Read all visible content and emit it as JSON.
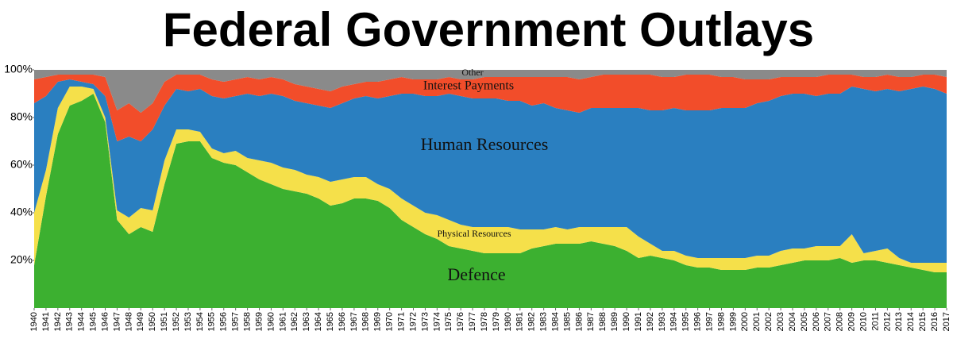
{
  "chart_data": {
    "type": "stacked_area",
    "title": "Federal Government Outlays",
    "x": [
      1940,
      1941,
      1942,
      1943,
      1944,
      1945,
      1946,
      1947,
      1948,
      1949,
      1950,
      1951,
      1952,
      1953,
      1954,
      1955,
      1956,
      1957,
      1958,
      1959,
      1960,
      1961,
      1962,
      1963,
      1964,
      1965,
      1966,
      1967,
      1968,
      1969,
      1970,
      1971,
      1972,
      1973,
      1974,
      1975,
      1976,
      1977,
      1978,
      1979,
      1980,
      1981,
      1982,
      1983,
      1984,
      1985,
      1986,
      1987,
      1988,
      1989,
      1990,
      1991,
      1992,
      1993,
      1994,
      1995,
      1996,
      1997,
      1998,
      1999,
      2000,
      2001,
      2002,
      2003,
      2004,
      2005,
      2006,
      2007,
      2008,
      2009,
      2010,
      2011,
      2012,
      2013,
      2014,
      2015,
      2016,
      2017
    ],
    "xlim": [
      1940,
      2017
    ],
    "xticks": [
      1940,
      1941,
      1942,
      1943,
      1944,
      1945,
      1946,
      1947,
      1948,
      1949,
      1950,
      1951,
      1952,
      1953,
      1954,
      1955,
      1956,
      1957,
      1958,
      1959,
      1960,
      1961,
      1962,
      1963,
      1964,
      1965,
      1966,
      1967,
      1968,
      1969,
      1970,
      1971,
      1972,
      1973,
      1974,
      1975,
      1976,
      1977,
      1978,
      1979,
      1980,
      1981,
      1982,
      1983,
      1984,
      1985,
      1986,
      1987,
      1988,
      1989,
      1990,
      1991,
      1992,
      1993,
      1994,
      1995,
      1996,
      1997,
      1998,
      1999,
      2000,
      2001,
      2002,
      2003,
      2004,
      2005,
      2006,
      2007,
      2008,
      2009,
      2010,
      2011,
      2012,
      2013,
      2014,
      2015,
      2016,
      2017
    ],
    "ylim": [
      0,
      100
    ],
    "yticks": [
      {
        "value": 20,
        "label": "20%"
      },
      {
        "value": 40,
        "label": "40%"
      },
      {
        "value": 60,
        "label": "60%"
      },
      {
        "value": 80,
        "label": "80%"
      },
      {
        "value": 100,
        "label": "100%"
      }
    ],
    "grid": false,
    "series": [
      {
        "name": "Defence",
        "color": "#3cb030",
        "values": [
          18,
          47,
          73,
          85,
          87,
          90,
          78,
          37,
          31,
          34,
          32,
          52,
          69,
          70,
          70,
          63,
          61,
          60,
          57,
          54,
          52,
          50,
          49,
          48,
          46,
          43,
          44,
          46,
          46,
          45,
          42,
          37,
          34,
          31,
          29,
          26,
          25,
          24,
          23,
          23,
          23,
          23,
          25,
          26,
          27,
          27,
          27,
          28,
          27,
          26,
          24,
          21,
          22,
          21,
          20,
          18,
          17,
          17,
          16,
          16,
          16,
          17,
          17,
          18,
          19,
          20,
          20,
          20,
          21,
          19,
          20,
          20,
          19,
          18,
          17,
          16,
          15,
          15
        ]
      },
      {
        "name": "Physical Resources",
        "color": "#f5e04a",
        "values": [
          22,
          11,
          11,
          8,
          6,
          2,
          2,
          4,
          7,
          8,
          9,
          10,
          6,
          5,
          4,
          4,
          4,
          6,
          6,
          8,
          9,
          9,
          9,
          8,
          9,
          10,
          10,
          9,
          9,
          7,
          8,
          9,
          9,
          9,
          10,
          11,
          10,
          10,
          11,
          11,
          11,
          10,
          8,
          7,
          7,
          6,
          7,
          6,
          7,
          8,
          10,
          9,
          5,
          3,
          4,
          4,
          4,
          4,
          5,
          5,
          5,
          5,
          5,
          6,
          6,
          5,
          6,
          6,
          5,
          12,
          3,
          4,
          6,
          3,
          2,
          3,
          4,
          4
        ]
      },
      {
        "name": "Human Resources",
        "color": "#2a7fc0",
        "values": [
          46,
          31,
          11,
          3,
          2,
          2,
          9,
          29,
          34,
          28,
          34,
          23,
          17,
          16,
          18,
          22,
          23,
          23,
          27,
          27,
          29,
          30,
          29,
          30,
          30,
          31,
          32,
          33,
          34,
          36,
          39,
          44,
          47,
          49,
          50,
          53,
          54,
          54,
          54,
          54,
          53,
          54,
          52,
          53,
          50,
          50,
          48,
          50,
          50,
          50,
          50,
          54,
          56,
          59,
          60,
          61,
          62,
          62,
          63,
          63,
          63,
          64,
          65,
          65,
          65,
          65,
          63,
          64,
          64,
          62,
          69,
          67,
          67,
          70,
          73,
          74,
          73,
          71
        ]
      },
      {
        "name": "Interest Payments",
        "color": "#f24d2a",
        "values": [
          10,
          8,
          3,
          2,
          3,
          4,
          8,
          13,
          14,
          12,
          11,
          10,
          6,
          7,
          6,
          7,
          7,
          7,
          7,
          7,
          7,
          7,
          7,
          7,
          7,
          7,
          7,
          6,
          6,
          7,
          7,
          7,
          6,
          7,
          7,
          7,
          7,
          8,
          9,
          9,
          10,
          10,
          12,
          11,
          13,
          14,
          14,
          13,
          14,
          14,
          14,
          14,
          15,
          14,
          13,
          15,
          15,
          15,
          13,
          13,
          12,
          10,
          9,
          8,
          7,
          7,
          8,
          8,
          8,
          5,
          5,
          6,
          6,
          6,
          5,
          5,
          6,
          7
        ]
      },
      {
        "name": "Other",
        "color": "#8a8a8a",
        "values": [
          4,
          3,
          2,
          2,
          2,
          2,
          3,
          17,
          14,
          18,
          14,
          5,
          2,
          2,
          2,
          4,
          5,
          4,
          3,
          4,
          3,
          4,
          6,
          7,
          8,
          9,
          7,
          6,
          5,
          5,
          4,
          3,
          4,
          4,
          4,
          3,
          4,
          4,
          3,
          3,
          3,
          3,
          3,
          3,
          3,
          3,
          4,
          3,
          2,
          2,
          2,
          2,
          2,
          3,
          3,
          2,
          2,
          2,
          3,
          3,
          4,
          4,
          4,
          3,
          3,
          3,
          3,
          2,
          2,
          2,
          3,
          3,
          2,
          3,
          3,
          2,
          2,
          3
        ]
      }
    ]
  }
}
